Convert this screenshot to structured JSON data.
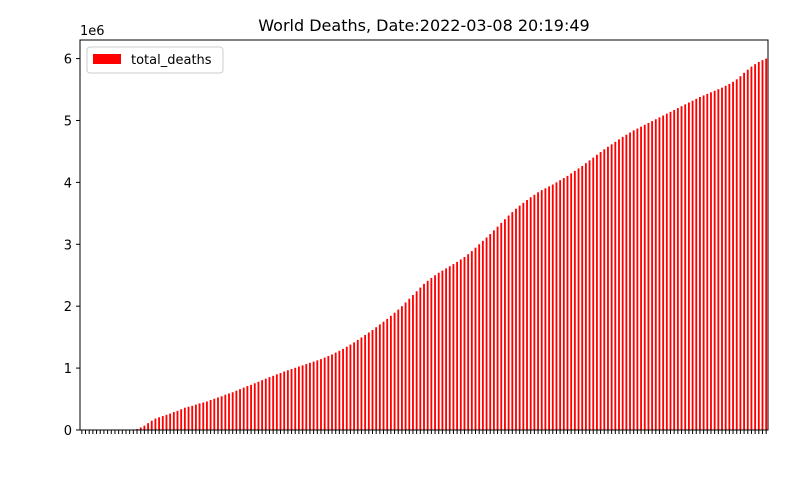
{
  "chart_data": {
    "type": "bar",
    "title": "World Deaths, Date:2022-03-08 20:19:49",
    "xlabel": "",
    "ylabel": "",
    "y_scale_label": "1e6",
    "ylim": [
      0,
      6300000
    ],
    "y_ticks": [
      0,
      1,
      2,
      3,
      4,
      5,
      6
    ],
    "grid": false,
    "legend_position": "top-left",
    "series": [
      {
        "name": "total_deaths",
        "color": "#ff0000",
        "values": [
          0,
          0,
          0,
          0,
          0,
          0,
          0,
          0,
          0,
          0,
          0,
          0,
          0,
          0,
          3000,
          15000,
          40000,
          70000,
          110000,
          150000,
          185000,
          205000,
          225000,
          245000,
          265000,
          290000,
          310000,
          335000,
          360000,
          375000,
          390000,
          410000,
          430000,
          445000,
          460000,
          485000,
          505000,
          525000,
          545000,
          570000,
          590000,
          610000,
          635000,
          660000,
          685000,
          710000,
          730000,
          755000,
          780000,
          805000,
          830000,
          855000,
          875000,
          900000,
          920000,
          945000,
          965000,
          985000,
          1005000,
          1025000,
          1045000,
          1065000,
          1085000,
          1105000,
          1125000,
          1145000,
          1170000,
          1195000,
          1220000,
          1250000,
          1280000,
          1310000,
          1345000,
          1380000,
          1415000,
          1455000,
          1495000,
          1535000,
          1575000,
          1615000,
          1660000,
          1705000,
          1750000,
          1795000,
          1845000,
          1895000,
          1945000,
          2000000,
          2060000,
          2120000,
          2180000,
          2240000,
          2300000,
          2360000,
          2410000,
          2455000,
          2500000,
          2540000,
          2575000,
          2610000,
          2645000,
          2680000,
          2715000,
          2755000,
          2795000,
          2840000,
          2890000,
          2945000,
          3000000,
          3055000,
          3110000,
          3165000,
          3225000,
          3285000,
          3345000,
          3405000,
          3465000,
          3520000,
          3575000,
          3625000,
          3670000,
          3715000,
          3760000,
          3800000,
          3840000,
          3875000,
          3905000,
          3935000,
          3965000,
          4000000,
          4035000,
          4070000,
          4105000,
          4145000,
          4185000,
          4225000,
          4265000,
          4310000,
          4355000,
          4400000,
          4445000,
          4490000,
          4535000,
          4575000,
          4615000,
          4655000,
          4695000,
          4735000,
          4770000,
          4805000,
          4840000,
          4870000,
          4900000,
          4930000,
          4960000,
          4990000,
          5020000,
          5050000,
          5080000,
          5110000,
          5140000,
          5170000,
          5200000,
          5230000,
          5260000,
          5290000,
          5320000,
          5350000,
          5380000,
          5405000,
          5430000,
          5455000,
          5480000,
          5505000,
          5530000,
          5560000,
          5590000,
          5625000,
          5665000,
          5715000,
          5770000,
          5820000,
          5870000,
          5910000,
          5945000,
          5975000,
          6000000
        ]
      }
    ]
  }
}
